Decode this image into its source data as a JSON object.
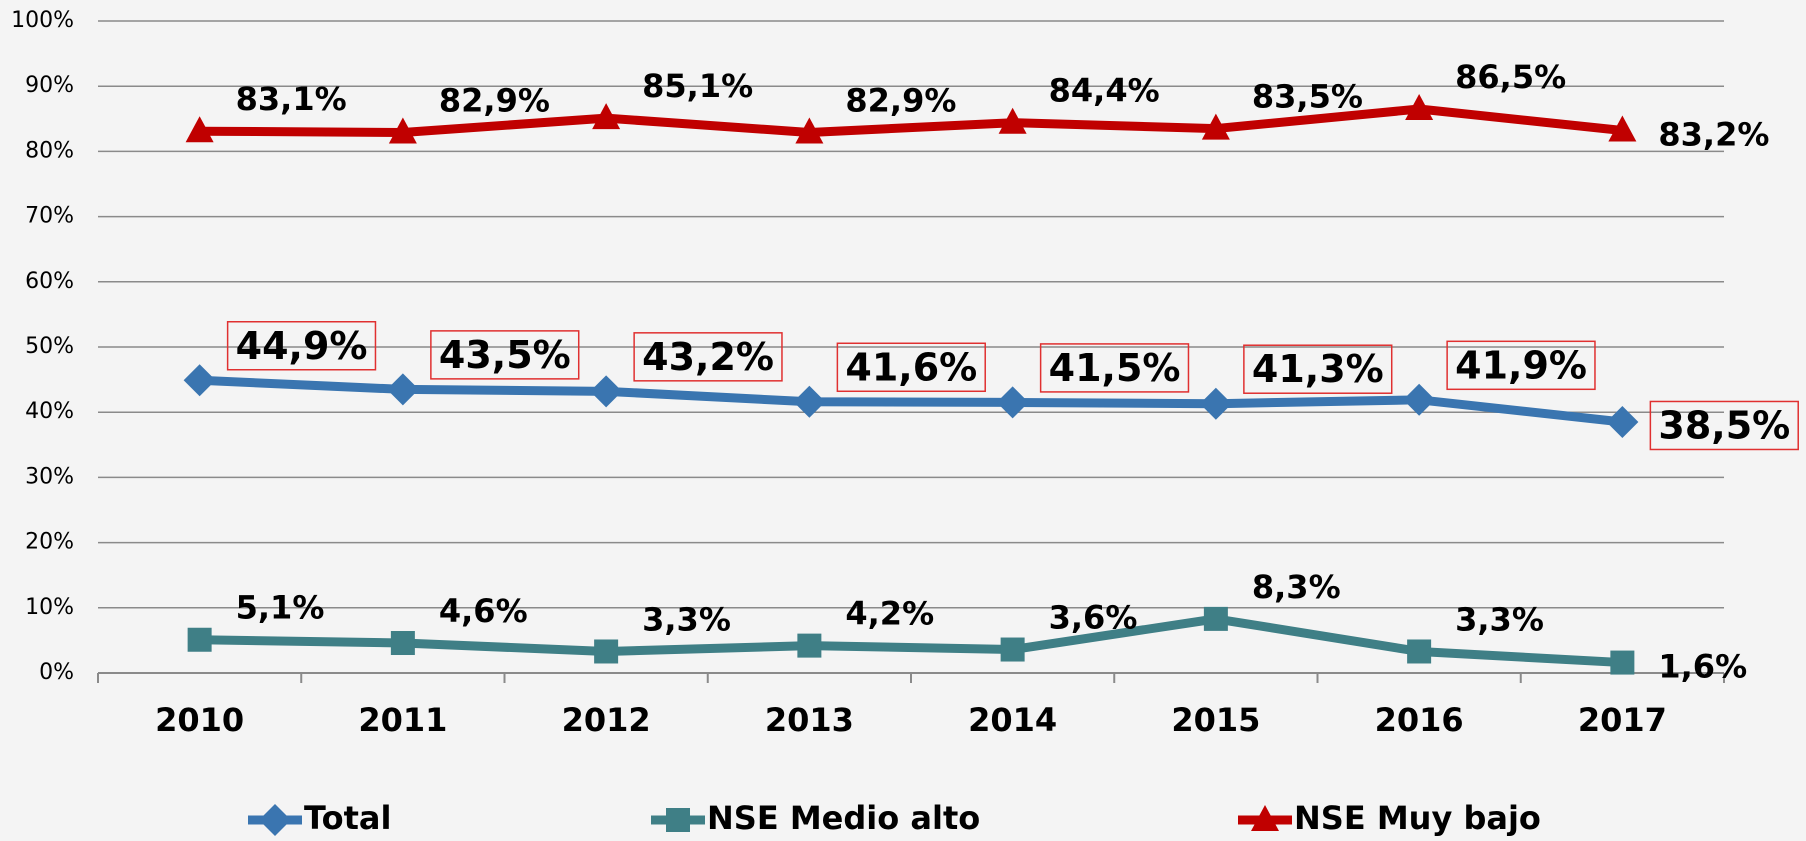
{
  "chart_data": {
    "type": "line",
    "categories": [
      "2010",
      "2011",
      "2012",
      "2013",
      "2014",
      "2015",
      "2016",
      "2017"
    ],
    "series": [
      {
        "name": "Total",
        "color": "#3a75b0",
        "marker": "diamond",
        "boxed_labels": true,
        "values": [
          44.9,
          43.5,
          43.2,
          41.6,
          41.5,
          41.3,
          41.9,
          38.5
        ],
        "value_labels": [
          "44,9%",
          "43,5%",
          "43,2%",
          "41,6%",
          "41,5%",
          "41,3%",
          "41,9%",
          "38,5%"
        ]
      },
      {
        "name": "NSE Medio alto",
        "color": "#3f7f86",
        "marker": "square",
        "values": [
          5.1,
          4.6,
          3.3,
          4.2,
          3.6,
          8.3,
          3.3,
          1.6
        ],
        "value_labels": [
          "5,1%",
          "4,6%",
          "3,3%",
          "4,2%",
          "3,6%",
          "8,3%",
          "3,3%",
          "1,6%"
        ]
      },
      {
        "name": "NSE Muy bajo",
        "color": "#c00000",
        "marker": "triangle",
        "values": [
          83.1,
          82.9,
          85.1,
          82.9,
          84.4,
          83.5,
          86.5,
          83.2
        ],
        "value_labels": [
          "83,1%",
          "82,9%",
          "85,1%",
          "82,9%",
          "84,4%",
          "83,5%",
          "86,5%",
          "83,2%"
        ]
      }
    ],
    "ylim": [
      0,
      100
    ],
    "yticks": [
      {
        "value": 0,
        "label": "0%"
      },
      {
        "value": 10,
        "label": "10%"
      },
      {
        "value": 20,
        "label": "20%"
      },
      {
        "value": 30,
        "label": "30%"
      },
      {
        "value": 40,
        "label": "40%"
      },
      {
        "value": 50,
        "label": "50%"
      },
      {
        "value": 60,
        "label": "60%"
      },
      {
        "value": 70,
        "label": "70%"
      },
      {
        "value": 80,
        "label": "80%"
      },
      {
        "value": 90,
        "label": "90%"
      },
      {
        "value": 100,
        "label": "100%"
      }
    ],
    "grid": true,
    "legend": "bottom"
  }
}
